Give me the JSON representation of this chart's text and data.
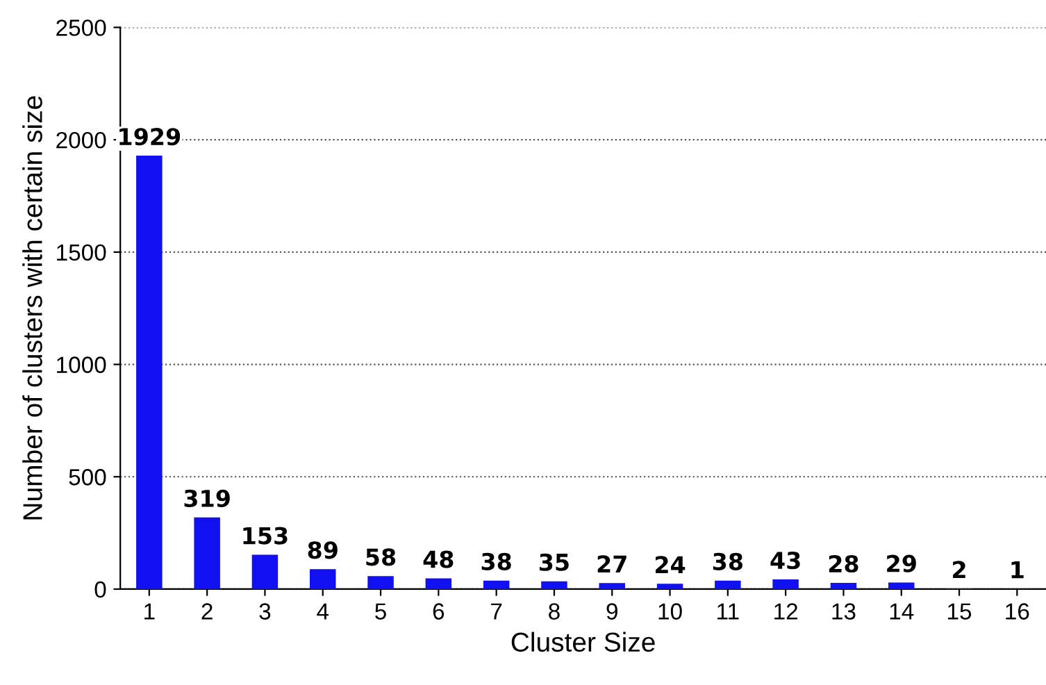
{
  "chart_data": {
    "type": "bar",
    "xlabel": "Cluster Size",
    "ylabel": "Number of clusters with certain size",
    "categories": [
      "1",
      "2",
      "3",
      "4",
      "5",
      "6",
      "7",
      "8",
      "9",
      "10",
      "11",
      "12",
      "13",
      "14",
      "15",
      "16"
    ],
    "values": [
      1929,
      319,
      153,
      89,
      58,
      48,
      38,
      35,
      27,
      24,
      38,
      43,
      28,
      29,
      2,
      1
    ],
    "color": "#1010f0",
    "ylim": [
      0,
      2500
    ],
    "yticks": [
      0,
      500,
      1000,
      1500,
      2000,
      2500
    ],
    "grid": "y",
    "data_labels": true
  }
}
